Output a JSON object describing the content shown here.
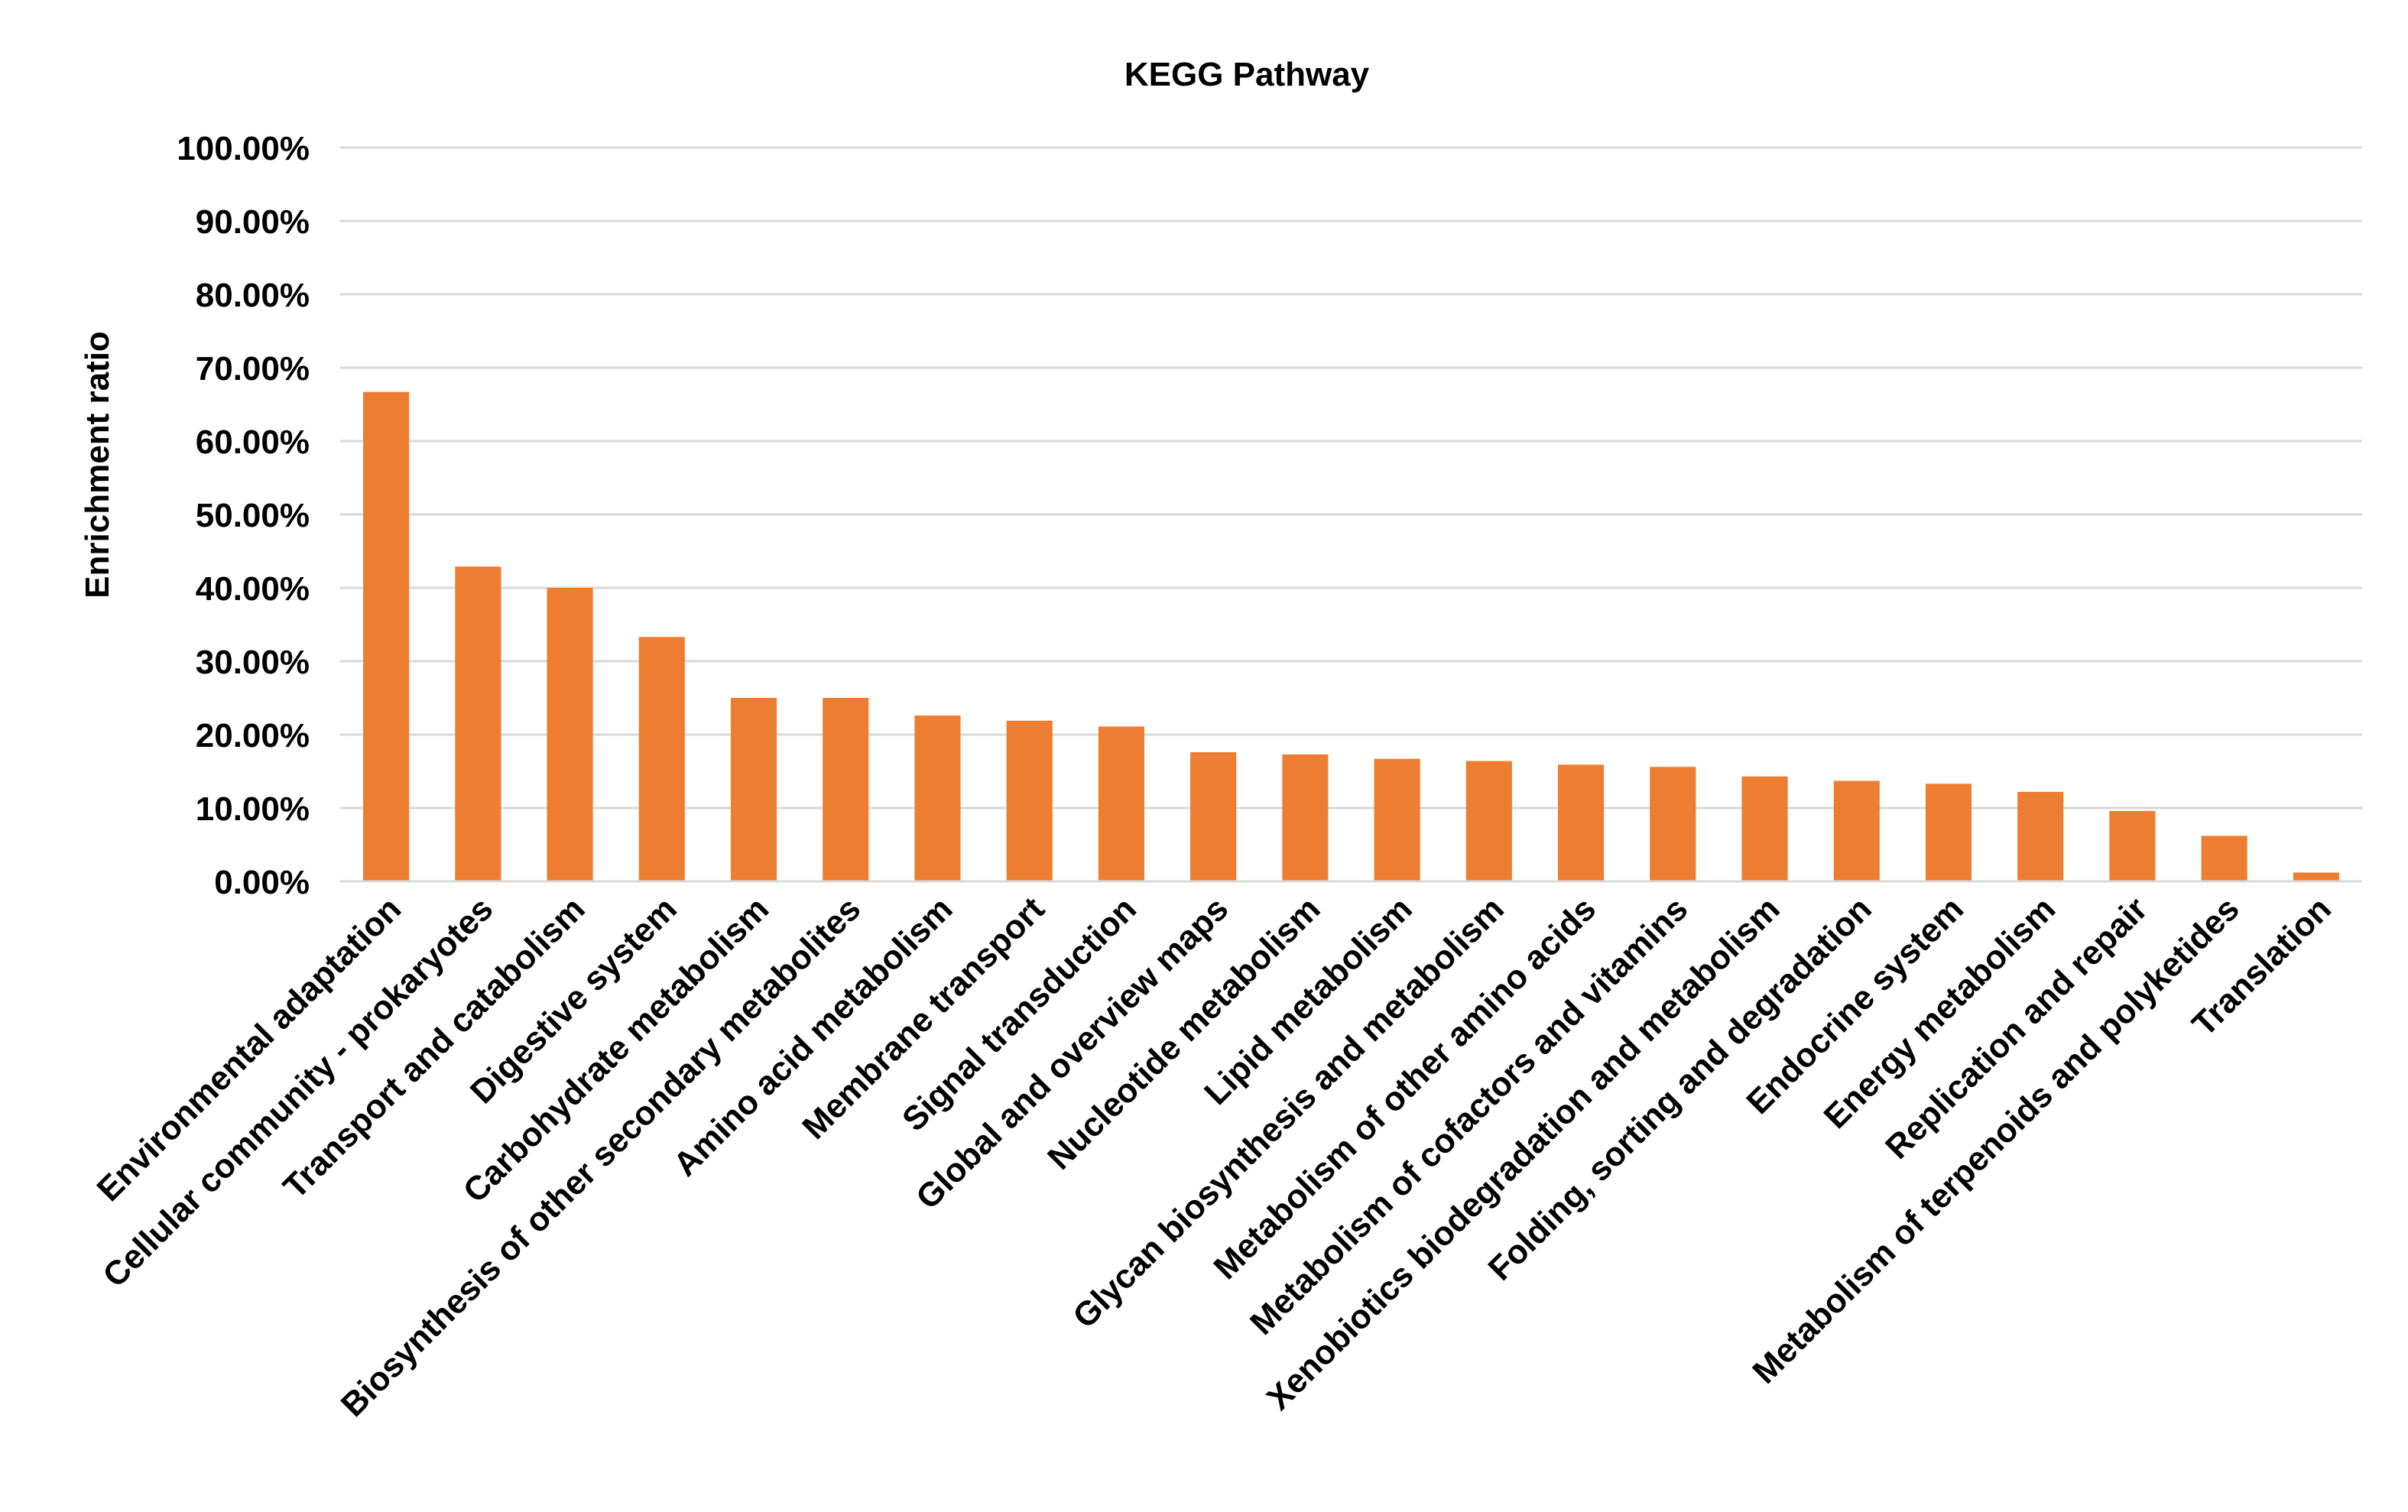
{
  "chart_data": {
    "type": "bar",
    "title": "KEGG Pathway",
    "xlabel": "",
    "ylabel": "Enrichment ratio",
    "ylim": [
      0,
      100
    ],
    "yticks": [
      "0.00%",
      "10.00%",
      "20.00%",
      "30.00%",
      "40.00%",
      "50.00%",
      "60.00%",
      "70.00%",
      "80.00%",
      "90.00%",
      "100.00%"
    ],
    "grid": true,
    "legend": "none",
    "bar_color": "#ED7D31",
    "categories": [
      "Environmental adaptation",
      "Cellular community - prokaryotes",
      "Transport and catabolism",
      "Digestive system",
      "Carbohydrate metabolism",
      "Biosynthesis of other secondary metabolites",
      "Amino acid metabolism",
      "Membrane transport",
      "Signal transduction",
      "Global and overview maps",
      "Nucleotide metabolism",
      "Lipid metabolism",
      "Glycan biosynthesis and metabolism",
      "Metabolism of other amino acids",
      "Metabolism of cofactors and vitamins",
      "Xenobiotics biodegradation and metabolism",
      "Folding, sorting and degradation",
      "Endocrine system",
      "Energy metabolism",
      "Replication and repair",
      "Metabolism of terpenoids and polyketides",
      "Translation"
    ],
    "values": [
      66.7,
      42.9,
      40.0,
      33.3,
      25.0,
      25.0,
      22.6,
      21.9,
      21.1,
      17.6,
      17.3,
      16.7,
      16.4,
      15.9,
      15.6,
      14.3,
      13.7,
      13.3,
      12.2,
      9.6,
      6.2,
      1.2
    ]
  }
}
